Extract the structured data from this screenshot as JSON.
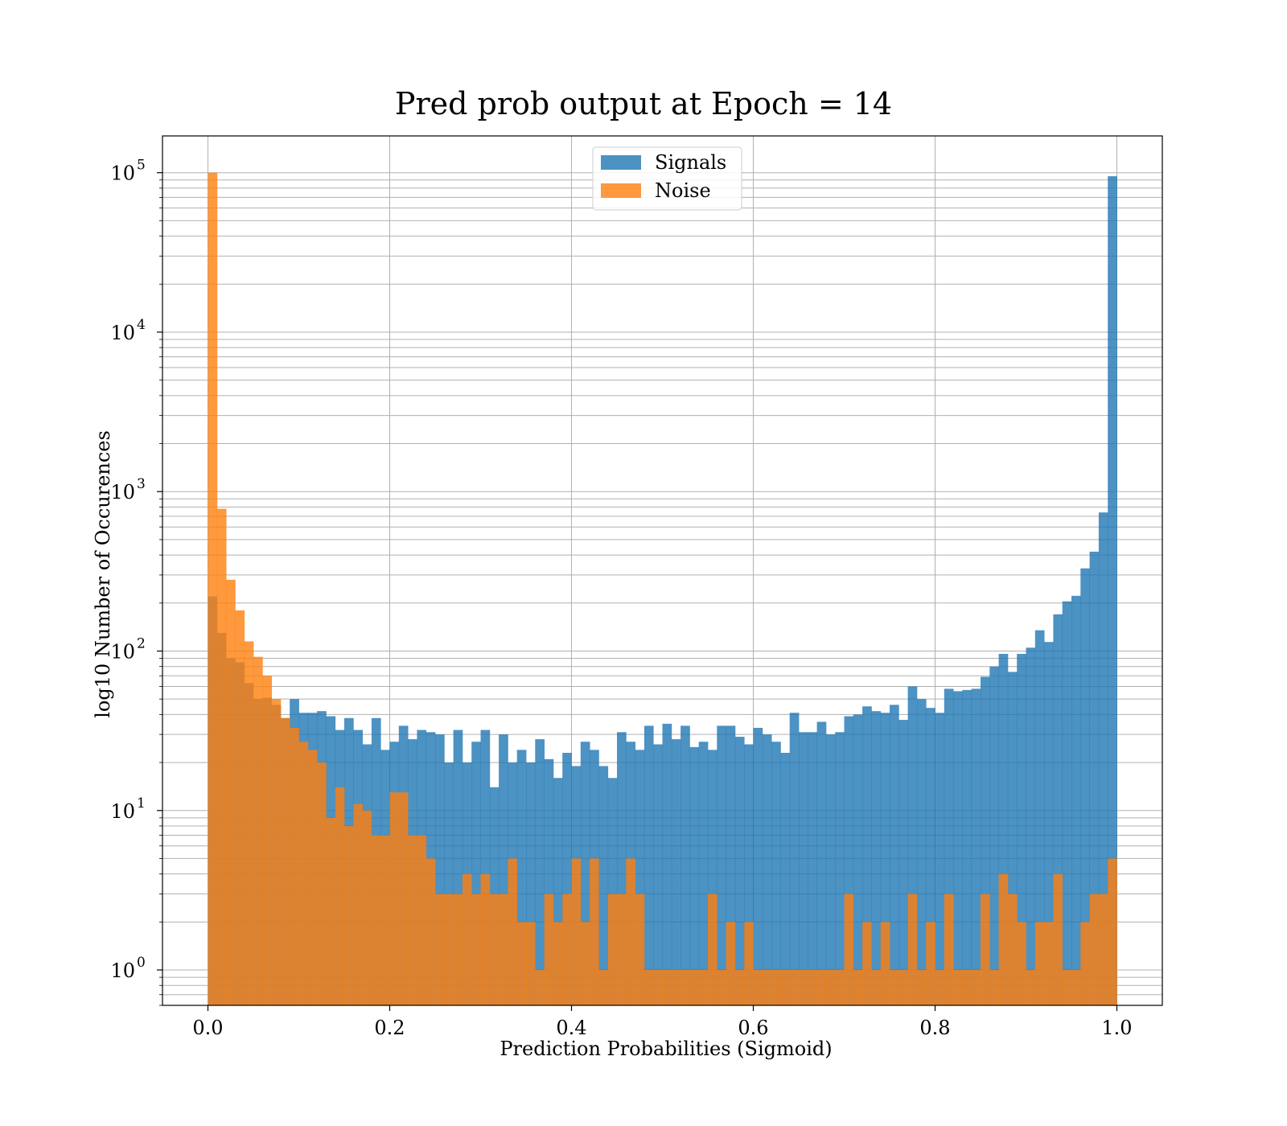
{
  "chart_data": {
    "type": "bar",
    "title": "Pred prob output at Epoch = 14",
    "xlabel": "Prediction Probabilities (Sigmoid)",
    "ylabel": "log10 Number of Occurences",
    "xlim": [
      -0.05,
      1.05
    ],
    "ylim": [
      0.6,
      170000
    ],
    "yscale": "log",
    "grid": true,
    "legend_position": "top-center",
    "x_ticks": [
      "0.0",
      "0.2",
      "0.4",
      "0.6",
      "0.8",
      "1.0"
    ],
    "y_ticks": [
      {
        "base": "10",
        "exp": "0"
      },
      {
        "base": "10",
        "exp": "1"
      },
      {
        "base": "10",
        "exp": "2"
      },
      {
        "base": "10",
        "exp": "3"
      },
      {
        "base": "10",
        "exp": "4"
      },
      {
        "base": "10",
        "exp": "5"
      }
    ],
    "bins": 100,
    "bin_range": [
      0,
      1
    ],
    "series": [
      {
        "name": "Signals",
        "color": "#1f77b4",
        "values": [
          220,
          130,
          90,
          85,
          63,
          50,
          51,
          46,
          38,
          50,
          41,
          41,
          42,
          39,
          32,
          38,
          32,
          26,
          38,
          24,
          27,
          34,
          28,
          32,
          31,
          30,
          20,
          32,
          20,
          27,
          32,
          14,
          30,
          20,
          24,
          20,
          28,
          21,
          16,
          23,
          19,
          27,
          24,
          19,
          16,
          31,
          27,
          24,
          34,
          26,
          35,
          28,
          34,
          25,
          27,
          24,
          34,
          34,
          29,
          26,
          33,
          30,
          27,
          23,
          41,
          31,
          31,
          36,
          30,
          31,
          39,
          40,
          45,
          42,
          41,
          46,
          37,
          60,
          50,
          44,
          41,
          58,
          56,
          57,
          58,
          69,
          80,
          96,
          74,
          96,
          105,
          135,
          114,
          170,
          205,
          222,
          330,
          420,
          740,
          95000
        ]
      },
      {
        "name": "Noise",
        "color": "#ff7f0e",
        "values": [
          100000,
          780,
          280,
          180,
          115,
          92,
          70,
          50,
          38,
          33,
          27,
          24,
          20,
          9,
          14,
          8,
          11,
          10,
          7,
          7,
          13,
          13,
          7,
          7,
          5,
          3,
          3,
          3,
          4,
          3,
          4,
          3,
          3,
          5,
          2,
          2,
          1,
          3,
          2,
          3,
          5,
          2,
          5,
          1,
          3,
          3,
          5,
          3,
          1,
          1,
          1,
          1,
          1,
          1,
          1,
          3,
          1,
          2,
          1,
          2,
          1,
          1,
          1,
          1,
          1,
          1,
          1,
          1,
          1,
          1,
          3,
          1,
          2,
          1,
          2,
          1,
          1,
          3,
          1,
          2,
          1,
          3,
          1,
          1,
          1,
          3,
          1,
          4,
          3,
          2,
          1,
          2,
          2,
          4,
          1,
          1,
          2,
          3,
          3,
          5
        ]
      }
    ]
  }
}
